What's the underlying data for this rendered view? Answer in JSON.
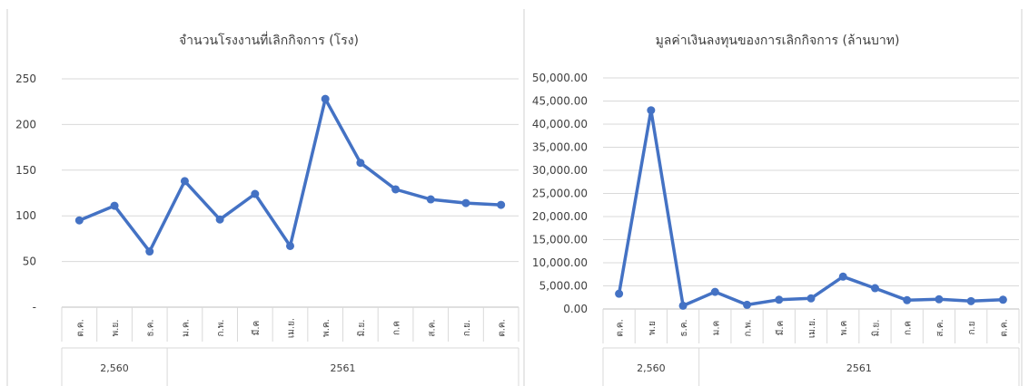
{
  "chart_data": [
    {
      "type": "line",
      "title": "จำนวนโรงงานที่เลิกกิจการ (โรง)",
      "categories": [
        "ต.ค.",
        "พ.ย.",
        "ธ.ค.",
        "ม.ค.",
        "ก.พ.",
        "มี.ค",
        "เม.ย.",
        "พ.ค.",
        "มิ.ย.",
        "ก.ค",
        "ส.ค.",
        "ก.ย.",
        "ต.ค."
      ],
      "groups": [
        {
          "label": "2,560",
          "span": 3
        },
        {
          "label": "2561",
          "span": 10
        }
      ],
      "yticks": [
        "-",
        "50",
        "100",
        "150",
        "200",
        "250"
      ],
      "ylim": [
        0,
        250
      ],
      "grid": true,
      "series": [
        {
          "values": [
            95,
            111,
            61,
            138,
            96,
            124,
            67,
            228,
            158,
            129,
            118,
            114,
            112
          ]
        }
      ],
      "color": "#4472c4"
    },
    {
      "type": "line",
      "title": "มูลค่าเงินลงทุนของการเลิกกิจการ (ล้านบาท)",
      "categories": [
        "ต.ค.",
        "พ.ย",
        "ธ.ค.",
        "ม.ค",
        "ก.พ.",
        "มี.ค",
        "เม.ย.",
        "พ.ค",
        "มิ.ย.",
        "ก.ค",
        "ส.ค.",
        "ก.ย",
        "ต.ค."
      ],
      "groups": [
        {
          "label": "2,560",
          "span": 3
        },
        {
          "label": "2561",
          "span": 10
        }
      ],
      "yticks": [
        "0.00",
        "5,000.00",
        "10,000.00",
        "15,000.00",
        "20,000.00",
        "25,000.00",
        "30,000.00",
        "35,000.00",
        "40,000.00",
        "45,000.00",
        "50,000.00"
      ],
      "ylim": [
        0,
        50000
      ],
      "grid": true,
      "series": [
        {
          "values": [
            3300,
            43000,
            700,
            3700,
            900,
            2000,
            2300,
            7000,
            4500,
            1900,
            2100,
            1700,
            2000
          ]
        }
      ],
      "color": "#4472c4"
    }
  ]
}
